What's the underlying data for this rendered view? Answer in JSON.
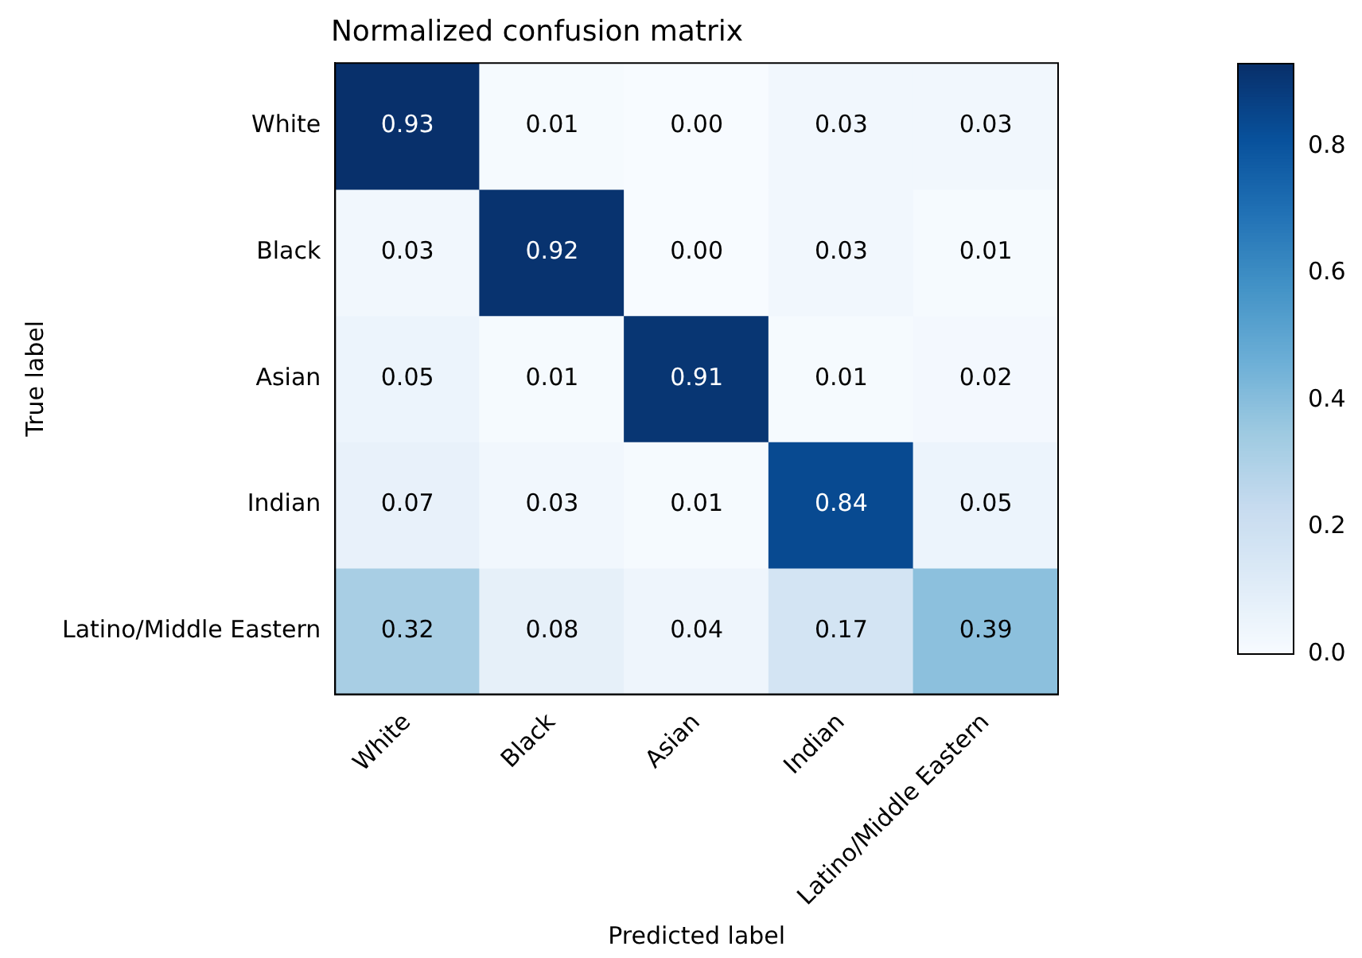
{
  "chart_data": {
    "type": "heatmap",
    "title": "Normalized confusion matrix",
    "xlabel": "Predicted label",
    "ylabel": "True label",
    "categories": [
      "White",
      "Black",
      "Asian",
      "Indian",
      "Latino/Middle Eastern"
    ],
    "y_categories": [
      "White",
      "Black",
      "Asian",
      "Indian",
      "Latino/Middle Eastern"
    ],
    "cells": [
      [
        0.93,
        0.01,
        0.0,
        0.03,
        0.03
      ],
      [
        0.03,
        0.92,
        0.0,
        0.03,
        0.01
      ],
      [
        0.05,
        0.01,
        0.91,
        0.01,
        0.02
      ],
      [
        0.07,
        0.03,
        0.01,
        0.84,
        0.05
      ],
      [
        0.32,
        0.08,
        0.04,
        0.17,
        0.39
      ]
    ],
    "cell_labels": [
      [
        "0.93",
        "0.01",
        "0.00",
        "0.03",
        "0.03"
      ],
      [
        "0.03",
        "0.92",
        "0.00",
        "0.03",
        "0.01"
      ],
      [
        "0.05",
        "0.01",
        "0.91",
        "0.01",
        "0.02"
      ],
      [
        "0.07",
        "0.03",
        "0.01",
        "0.84",
        "0.05"
      ],
      [
        "0.32",
        "0.08",
        "0.04",
        "0.17",
        "0.39"
      ]
    ],
    "clim": [
      0,
      0.93
    ],
    "cticks": [
      {
        "value": 0,
        "label": "0.0"
      },
      0.2,
      0.4,
      0.6,
      0.8
    ],
    "grid": false
  }
}
